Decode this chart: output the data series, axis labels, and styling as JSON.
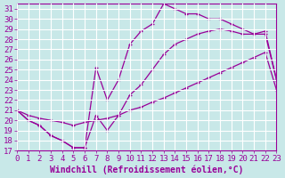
{
  "xlabel": "Windchill (Refroidissement éolien,°C)",
  "bg_color": "#c8e8e8",
  "line_color": "#990099",
  "grid_color": "#ffffff",
  "xlim": [
    0,
    23
  ],
  "ylim": [
    17,
    31.5
  ],
  "yticks": [
    17,
    18,
    19,
    20,
    21,
    22,
    23,
    24,
    25,
    26,
    27,
    28,
    29,
    30,
    31
  ],
  "xticks": [
    0,
    1,
    2,
    3,
    4,
    5,
    6,
    7,
    8,
    9,
    10,
    11,
    12,
    13,
    14,
    15,
    16,
    17,
    18,
    19,
    20,
    21,
    22,
    23
  ],
  "curve_upper_x": [
    0,
    1,
    2,
    3,
    4,
    5,
    6,
    7,
    8,
    9,
    10,
    11,
    12,
    13,
    14,
    15,
    16,
    17,
    18,
    19,
    20,
    21,
    22,
    23
  ],
  "curve_upper_y": [
    21.0,
    20.0,
    19.5,
    18.5,
    18.0,
    17.3,
    17.3,
    25.2,
    22.0,
    24.0,
    27.5,
    28.8,
    29.5,
    31.5,
    31.0,
    30.5,
    30.5,
    30.0,
    30.0,
    29.5,
    29.0,
    28.5,
    28.5,
    24.0
  ],
  "curve_mid_x": [
    0,
    1,
    2,
    3,
    4,
    5,
    6,
    7,
    8,
    9,
    10,
    11,
    12,
    13,
    14,
    15,
    16,
    17,
    18,
    19,
    20,
    21,
    22,
    23
  ],
  "curve_mid_y": [
    21.0,
    20.0,
    19.5,
    18.5,
    18.0,
    17.3,
    17.3,
    20.5,
    19.0,
    20.5,
    22.5,
    23.5,
    25.0,
    26.5,
    27.5,
    28.0,
    28.5,
    28.8,
    29.0,
    28.8,
    28.5,
    28.5,
    28.8,
    24.0
  ],
  "curve_low_x": [
    0,
    1,
    2,
    3,
    4,
    5,
    6,
    7,
    8,
    9,
    10,
    11,
    12,
    13,
    14,
    15,
    16,
    17,
    18,
    19,
    20,
    21,
    22,
    23
  ],
  "curve_low_y": [
    21.0,
    20.5,
    20.2,
    20.0,
    19.8,
    19.5,
    19.8,
    20.0,
    20.2,
    20.5,
    21.0,
    21.3,
    21.8,
    22.2,
    22.7,
    23.2,
    23.7,
    24.2,
    24.7,
    25.2,
    25.7,
    26.2,
    26.7,
    23.0
  ],
  "font_family": "monospace",
  "tick_fontsize": 6.5,
  "label_fontsize": 7
}
